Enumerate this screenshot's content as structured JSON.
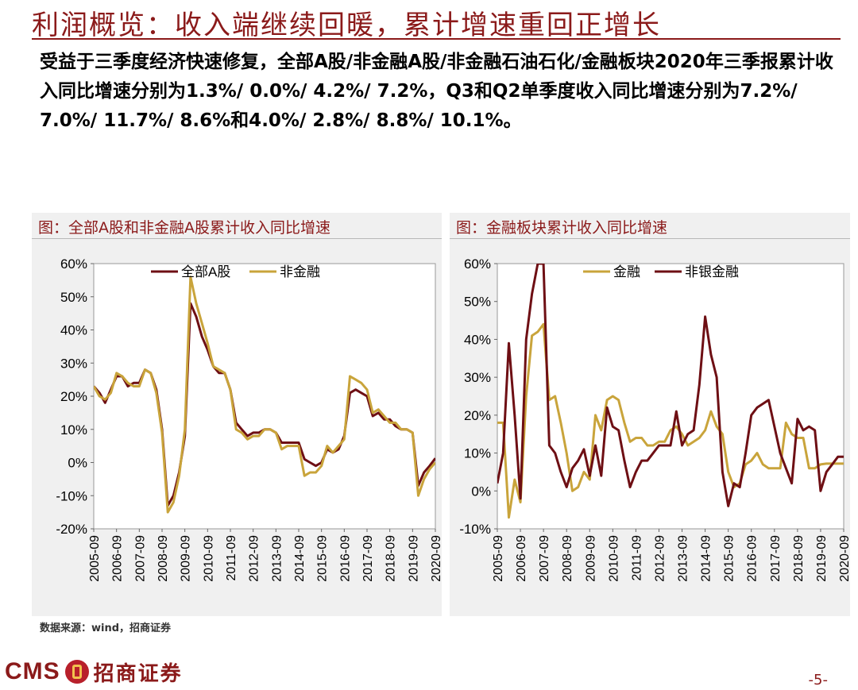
{
  "header": {
    "title": "利润概览：收入端继续回暖，累计增速重回正增长",
    "summary": "受益于三季度经济快速修复，全部A股/非金融A股/非金融石油石化/金融板块2020年三季报累计收入同比增速分别为1.3%/ 0.0%/ 4.2%/ 7.2%，Q3和Q2单季度收入同比增速分别为7.2%/ 7.0%/ 11.7%/ 8.6%和4.0%/ 2.8%/ 8.8%/ 10.1%。"
  },
  "footer": {
    "source": "数据来源：wind，招商证券",
    "logo_text": "CMS",
    "logo_cn": "招商证券",
    "page": "-5-"
  },
  "colors": {
    "dark_red": "#6e0f14",
    "gold": "#c9a43b",
    "brand": "#8b1a1a",
    "panel_bg": "#f0f0f0"
  },
  "chart_data": [
    {
      "type": "line",
      "title": "图：全部A股和非金融A股累计收入同比增速",
      "ylim": [
        -20,
        60
      ],
      "yticks": [
        "60%",
        "50%",
        "40%",
        "30%",
        "20%",
        "10%",
        "0%",
        "-10%",
        "-20%"
      ],
      "xticks": [
        "2005-09",
        "2006-09",
        "2007-09",
        "2008-09",
        "2009-09",
        "2010-09",
        "2011-09",
        "2012-09",
        "2013-09",
        "2014-09",
        "2015-09",
        "2016-09",
        "2017-09",
        "2018-09",
        "2019-09",
        "2020-09"
      ],
      "x": [
        2005.75,
        2006.0,
        2006.25,
        2006.5,
        2006.75,
        2007.0,
        2007.25,
        2007.5,
        2007.75,
        2008.0,
        2008.25,
        2008.5,
        2008.75,
        2009.0,
        2009.25,
        2009.5,
        2009.75,
        2010.0,
        2010.25,
        2010.5,
        2010.75,
        2011.0,
        2011.25,
        2011.5,
        2011.75,
        2012.0,
        2012.25,
        2012.5,
        2012.75,
        2013.0,
        2013.25,
        2013.5,
        2013.75,
        2014.0,
        2014.25,
        2014.5,
        2014.75,
        2015.0,
        2015.25,
        2015.5,
        2015.75,
        2016.0,
        2016.25,
        2016.5,
        2016.75,
        2017.0,
        2017.25,
        2017.5,
        2017.75,
        2018.0,
        2018.25,
        2018.5,
        2018.75,
        2019.0,
        2019.25,
        2019.5,
        2019.75,
        2020.0,
        2020.25,
        2020.5,
        2020.75
      ],
      "legend_position": "top",
      "series": [
        {
          "name": "全部A股",
          "color": "#6e0f14",
          "values": [
            23,
            21,
            18,
            22,
            26,
            26,
            23,
            24,
            24,
            28,
            27,
            22,
            10,
            -13,
            -10,
            -3,
            8,
            48,
            44,
            38,
            34,
            29,
            27,
            27,
            22,
            12,
            10,
            8,
            9,
            9,
            10,
            10,
            9,
            6,
            6,
            6,
            6,
            1,
            0,
            -1,
            0,
            4,
            3,
            4,
            8,
            21,
            22,
            21,
            20,
            14,
            15,
            13,
            13,
            11,
            10,
            10,
            9,
            -7,
            -3,
            -1,
            1.3
          ]
        },
        {
          "name": "非金融",
          "color": "#c9a43b",
          "values": [
            23,
            20,
            19,
            21,
            27,
            26,
            24,
            23,
            23,
            28,
            27,
            21,
            9,
            -15,
            -12,
            -4,
            10,
            56,
            48,
            42,
            36,
            29,
            28,
            27,
            22,
            10,
            9,
            7,
            8,
            8,
            10,
            10,
            9,
            4,
            5,
            5,
            5,
            -4,
            -3,
            -3,
            -1,
            5,
            3,
            5,
            7,
            26,
            25,
            24,
            22,
            15,
            16,
            14,
            12,
            12,
            10,
            10,
            9,
            -10,
            -5,
            -2,
            0.0
          ]
        }
      ]
    },
    {
      "type": "line",
      "title": "图：金融板块累计收入同比增速",
      "ylim": [
        -10,
        60
      ],
      "yticks": [
        "60%",
        "50%",
        "40%",
        "30%",
        "20%",
        "10%",
        "0%",
        "-10%"
      ],
      "xticks": [
        "2005-09",
        "2006-09",
        "2007-09",
        "2008-09",
        "2009-09",
        "2010-09",
        "2011-09",
        "2012-09",
        "2013-09",
        "2014-09",
        "2015-09",
        "2016-09",
        "2017-09",
        "2018-09",
        "2019-09",
        "2020-09"
      ],
      "x": [
        2005.75,
        2006.0,
        2006.25,
        2006.5,
        2006.75,
        2007.0,
        2007.25,
        2007.5,
        2007.75,
        2008.0,
        2008.25,
        2008.5,
        2008.75,
        2009.0,
        2009.25,
        2009.5,
        2009.75,
        2010.0,
        2010.25,
        2010.5,
        2010.75,
        2011.0,
        2011.25,
        2011.5,
        2011.75,
        2012.0,
        2012.25,
        2012.5,
        2012.75,
        2013.0,
        2013.25,
        2013.5,
        2013.75,
        2014.0,
        2014.25,
        2014.5,
        2014.75,
        2015.0,
        2015.25,
        2015.5,
        2015.75,
        2016.0,
        2016.25,
        2016.5,
        2016.75,
        2017.0,
        2017.25,
        2017.5,
        2017.75,
        2018.0,
        2018.25,
        2018.5,
        2018.75,
        2019.0,
        2019.25,
        2019.5,
        2019.75,
        2020.0,
        2020.25,
        2020.5,
        2020.75
      ],
      "legend_position": "top",
      "series": [
        {
          "name": "金融",
          "color": "#c9a43b",
          "values": [
            18,
            18,
            -7,
            3,
            -3,
            25,
            41,
            42,
            44,
            24,
            25,
            18,
            10,
            0,
            1,
            5,
            3,
            20,
            16,
            24,
            25,
            24,
            18,
            13,
            14,
            14,
            12,
            12,
            13,
            13,
            16,
            17,
            15,
            12,
            13,
            14,
            16,
            21,
            17,
            15,
            5,
            1,
            2,
            7,
            8,
            10,
            7,
            6,
            6,
            6,
            18,
            15,
            14,
            14,
            6,
            6,
            7,
            7.2,
            7.2,
            7.2,
            7.2
          ]
        },
        {
          "name": "非银金融",
          "color": "#6e0f14",
          "values": [
            2,
            10,
            39,
            20,
            -2,
            40,
            52,
            64,
            64,
            12,
            10,
            5,
            1,
            6,
            8,
            11,
            4,
            12,
            4,
            22,
            17,
            16,
            8,
            1,
            5,
            8,
            8,
            10,
            12,
            12,
            12,
            21,
            12,
            15,
            16,
            28,
            46,
            36,
            30,
            5,
            -4,
            2,
            1,
            10,
            20,
            22,
            23,
            24,
            17,
            10,
            6,
            2,
            19,
            16,
            17,
            16,
            0,
            5,
            7,
            9,
            9
          ]
        }
      ]
    }
  ]
}
